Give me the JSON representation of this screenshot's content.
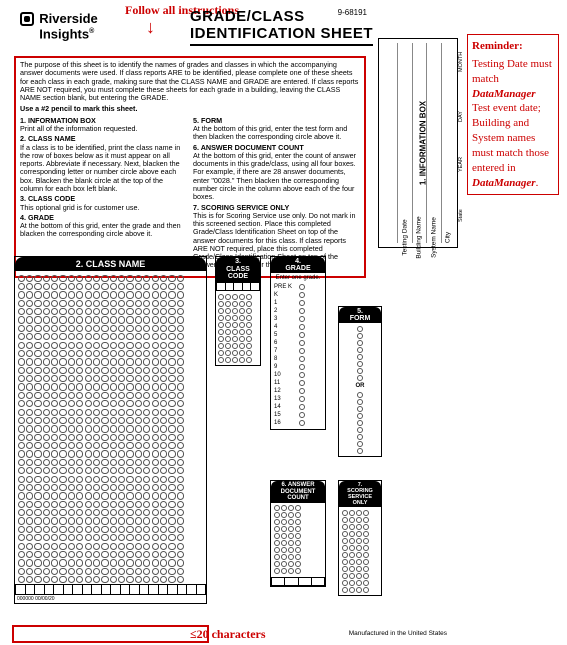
{
  "callouts": {
    "top": "Follow all instructions",
    "bottom": "≤20 characters",
    "reminder_lines": [
      "Reminder:",
      "Testing Date must match ",
      "DataManager",
      " Test event date; Building and System names must match those entered in ",
      "DataManager",
      "."
    ]
  },
  "logo": {
    "line1": "Riverside",
    "line2": "Insights",
    "tm": "®"
  },
  "title": {
    "line1": "GRADE/CLASS",
    "line2": "IDENTIFICATION SHEET"
  },
  "form_no": "9-68191",
  "intro": "The purpose of this sheet is to identify the names of grades and classes in which the accompanying answer documents were used. If class reports ARE to be identified, please complete one of these sheets for each class in each grade, making sure that the CLASS NAME and GRADE are entered. If class reports ARE NOT required, you must complete these sheets for each grade in a building, leaving the CLASS NAME section blank, but entering the GRADE.",
  "pencil": "Use a #2 pencil to mark this sheet.",
  "inst_left": [
    {
      "h": "1. INFORMATION BOX",
      "t": "Print all of the information requested."
    },
    {
      "h": "2. CLASS NAME",
      "t": "If a class is to be identified, print the class name in the row of boxes below as it must appear on all reports. Abbreviate if necessary.\nNext, blacken the corresponding letter or number circle above each box. Blacken the blank circle at the top of the column for each box left blank."
    },
    {
      "h": "3. CLASS CODE",
      "t": "This optional grid is for customer use."
    },
    {
      "h": "4. GRADE",
      "t": "At the bottom of this grid, enter the grade and then blacken the corresponding circle above it."
    }
  ],
  "inst_right": [
    {
      "h": "5. FORM",
      "t": "At the bottom of this grid, enter the test form and then blacken the corresponding circle above it."
    },
    {
      "h": "6. ANSWER DOCUMENT COUNT",
      "t": "At the bottom of this grid, enter the count of answer documents in this grade/class, using all four boxes. For example, if there are 28 answer documents, enter \"0028.\" Then blacken the corresponding number circle in the column above each of the four boxes."
    },
    {
      "h": "7. SCORING SERVICE ONLY",
      "t": "This is for Scoring Service use only. Do not mark in this screened section.\nPlace this completed Grade/Class Identification Sheet on top of the answer documents for this class. If class reports ARE NOT required, place this completed Grade/Class Identification Sheet on top of the answer documents for this grade."
    }
  ],
  "infobox": {
    "title": "1. INFORMATION BOX",
    "fields": [
      "Testing Date",
      "Building Name",
      "System Name",
      "City"
    ],
    "subs": [
      "MONTH",
      "DAY",
      "YEAR",
      "State"
    ]
  },
  "panels": {
    "classname": "2. CLASS NAME",
    "classcode": "3.\nCLASS\nCODE",
    "grade": "4.\nGRADE",
    "grade_hint": "Enter one grade.",
    "form": "5.\nFORM",
    "or": "OR",
    "adc": "6. ANSWER\nDOCUMENT\nCOUNT",
    "sso": "7.\nSCORING\nSERVICE\nONLY"
  },
  "grades": [
    "PRE K",
    "K",
    "1",
    "2",
    "3",
    "4",
    "5",
    "6",
    "7",
    "8",
    "9",
    "10",
    "11",
    "12",
    "13",
    "14",
    "15",
    "16"
  ],
  "footer_left": "000000      00/00/20",
  "mfg": "Manufactured in the United States",
  "style": {
    "red": "#cc0000",
    "classname_cols": 20,
    "classname_rows": 37,
    "classcode_cols": 5,
    "classcode_rows": 10,
    "adc_cols": 4,
    "adc_rows": 10,
    "sso_cols": 4,
    "sso_rows": 12,
    "form_rows_a": 8,
    "form_rows_b": 9
  }
}
